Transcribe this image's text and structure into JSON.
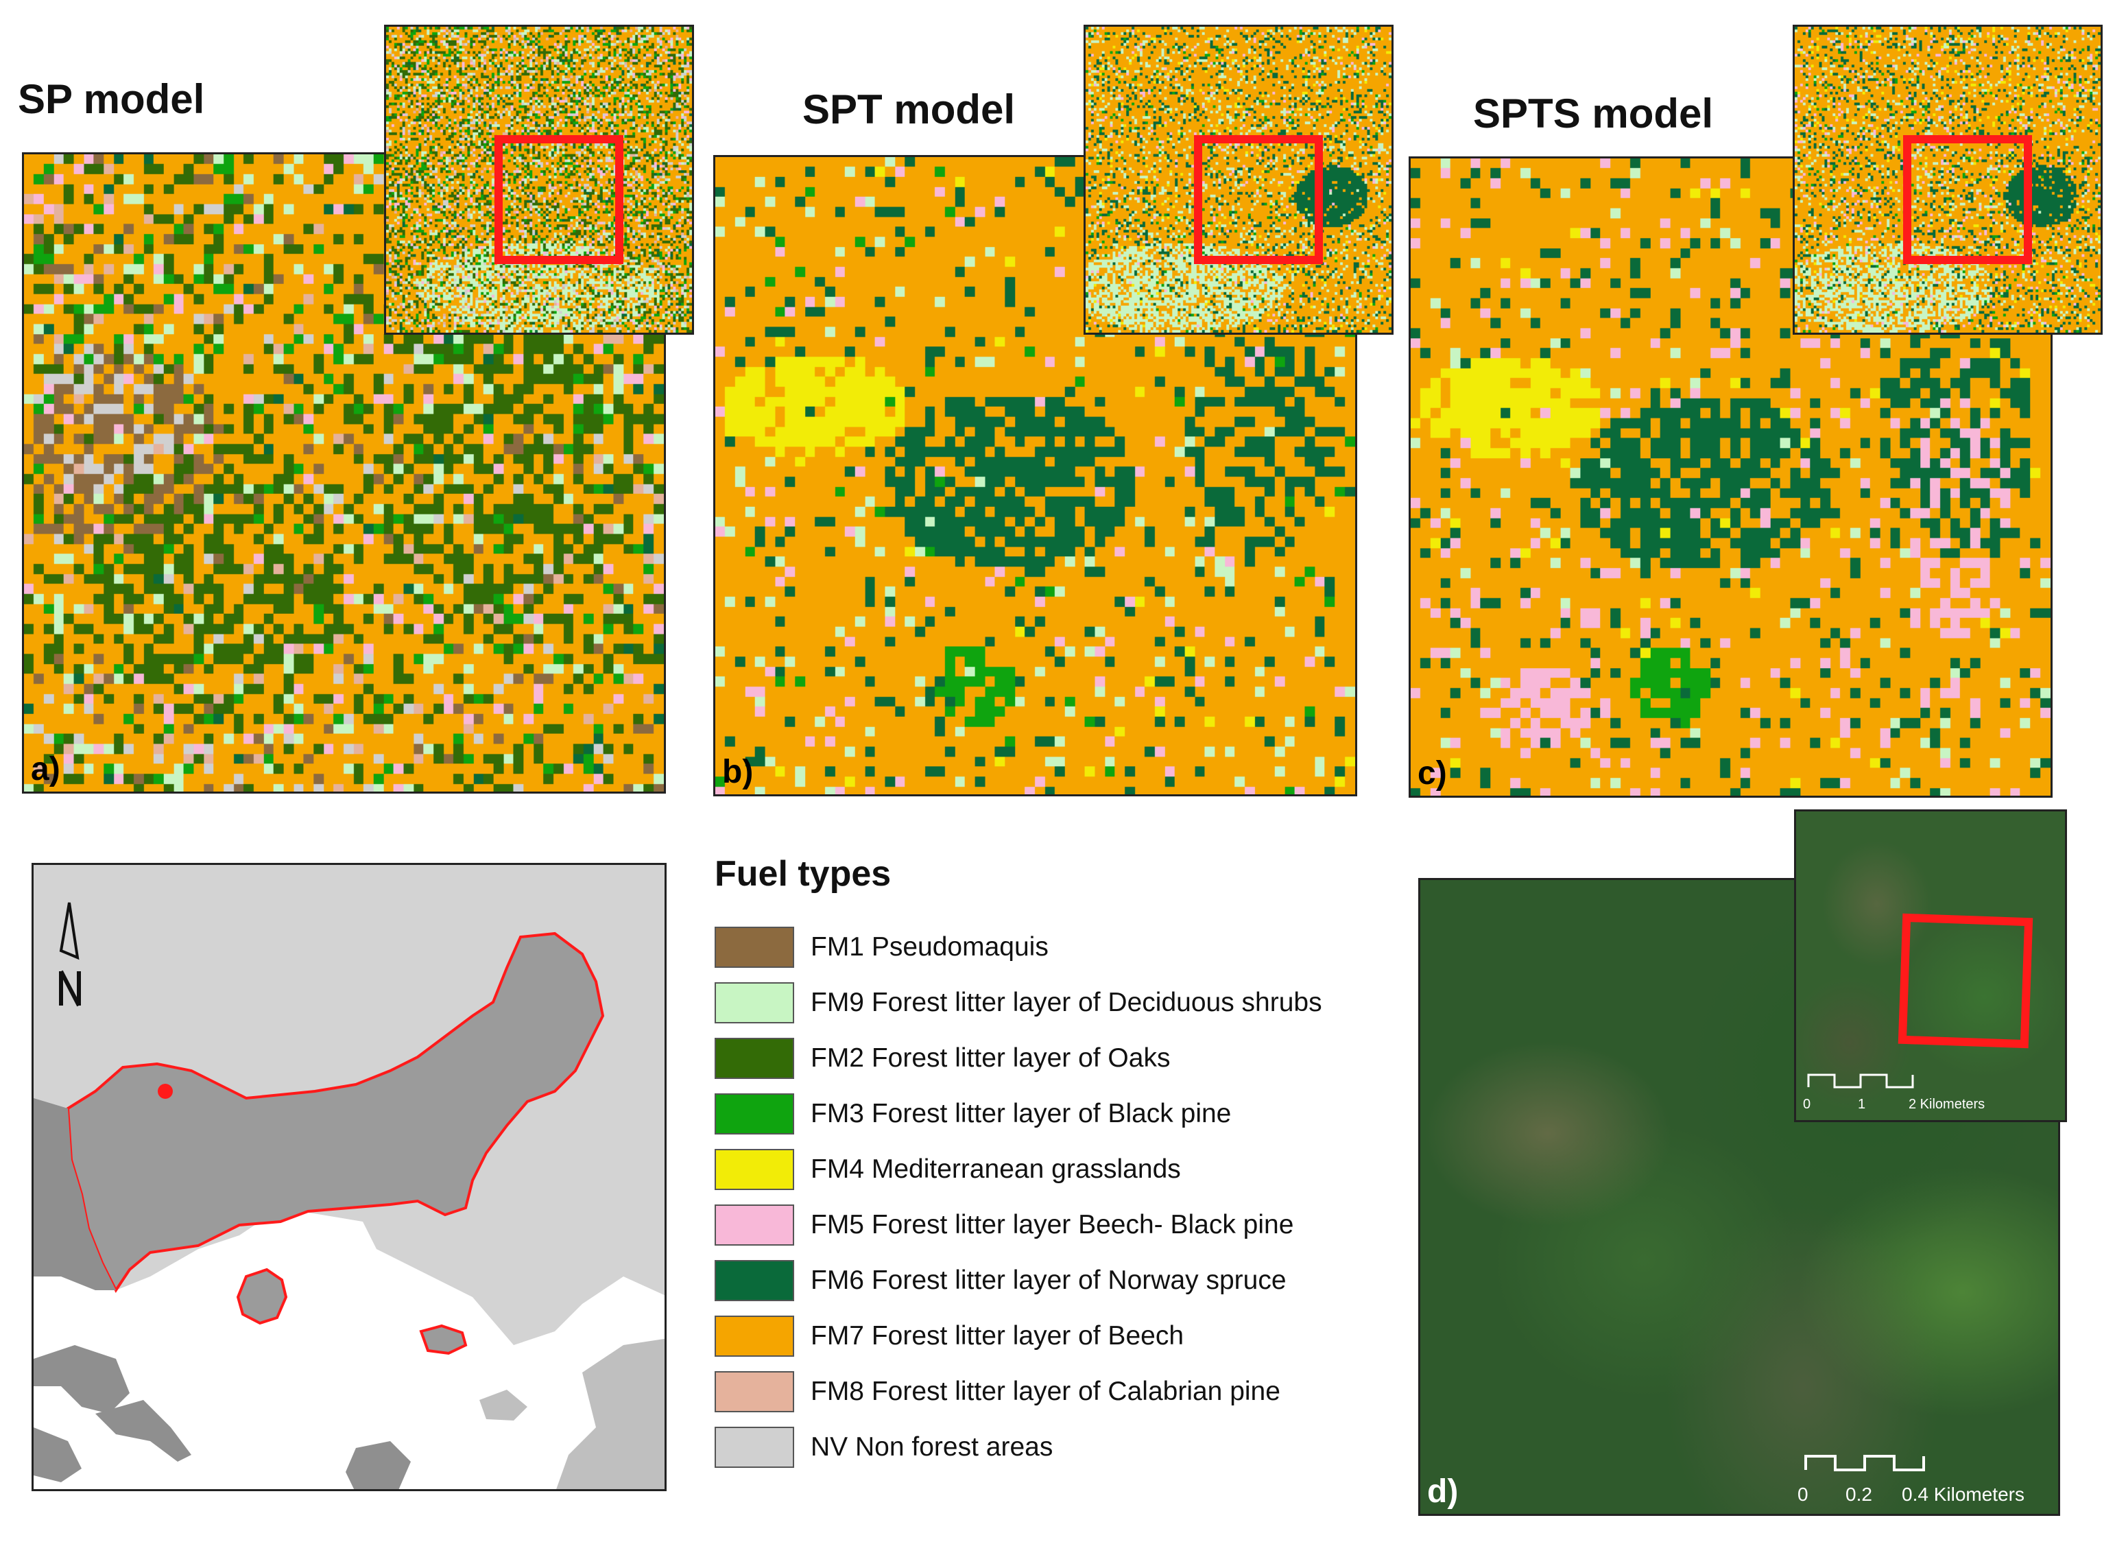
{
  "panels": [
    {
      "title": "SP model",
      "label": "a)"
    },
    {
      "title": "SPT model",
      "label": "b)"
    },
    {
      "title": "SPTS model",
      "label": "c)"
    },
    {
      "title": "",
      "label": "d)"
    }
  ],
  "legend": {
    "title": "Fuel types",
    "items": [
      {
        "code": "FM1",
        "label": "FM1  Pseudomaquis",
        "color": "#8c6a3f"
      },
      {
        "code": "FM9",
        "label": "FM9 Forest litter layer of  Deciduous shrubs",
        "color": "#c8f5c3"
      },
      {
        "code": "FM2",
        "label": "FM2  Forest litter layer of Oaks",
        "color": "#336b06"
      },
      {
        "code": "FM3",
        "label": "FM3  Forest litter layer of Black pine",
        "color": "#0fa40f"
      },
      {
        "code": "FM4",
        "label": "FM4 Mediterranean grasslands",
        "color": "#f2ec07"
      },
      {
        "code": "FM5",
        "label": "FM5 Forest litter layer Beech- Black pine",
        "color": "#f8b8d8"
      },
      {
        "code": "FM6",
        "label": "FM6 Forest litter layer of Norway spruce",
        "color": "#0a6a3a"
      },
      {
        "code": "FM7",
        "label": "FM7 Forest litter layer of  Beech",
        "color": "#f5a500"
      },
      {
        "code": "FM8",
        "label": "FM8 Forest litter layer of Calabrian pine",
        "color": "#e5b29c"
      },
      {
        "code": "NV",
        "label": "NV Non forest areas",
        "color": "#d0d0d0"
      }
    ]
  },
  "scalebars": {
    "inset": {
      "ticks": [
        "0",
        "1",
        "2 Kilometers"
      ]
    },
    "main": {
      "ticks": [
        "0",
        "0.2",
        "0.4 Kilometers"
      ]
    }
  },
  "map": {
    "north_arrow": "north-arrow-icon",
    "colors": {
      "land_light": "#d3d3d3",
      "region": "#9b9b9b",
      "boundary": "#ff1a1a",
      "sea": "#ffffff",
      "dark_land": "#8f8f8f"
    }
  }
}
